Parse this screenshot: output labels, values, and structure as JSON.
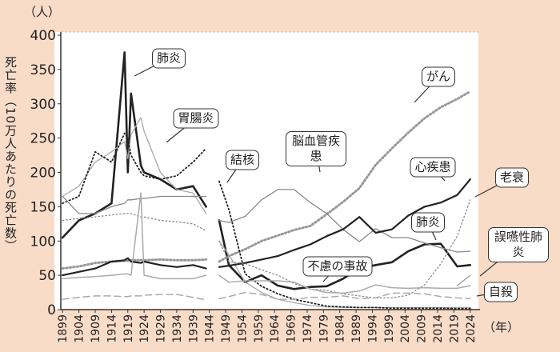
{
  "chart_data": {
    "type": "line",
    "y_unit": "（人）",
    "y_label": "死亡率（10万人あたりの死亡数）",
    "x_unit": "（年）",
    "x": [
      1899,
      1904,
      1909,
      1914,
      1918,
      1919,
      1920,
      1923,
      1924,
      1929,
      1934,
      1939,
      1943,
      1945,
      1947,
      1950,
      1955,
      1960,
      1965,
      1970,
      1975,
      1980,
      1985,
      1990,
      1995,
      2000,
      2005,
      2010,
      2015,
      2020,
      2024
    ],
    "xlim": [
      1896,
      2027
    ],
    "xticks": [
      1899,
      1904,
      1909,
      1914,
      1919,
      1924,
      1929,
      1934,
      1939,
      1944,
      1949,
      1954,
      1959,
      1964,
      1969,
      1974,
      1979,
      1984,
      1989,
      1994,
      1999,
      2004,
      2009,
      2014,
      2019,
      2024
    ],
    "ylim": [
      0,
      400
    ],
    "yticks": [
      0,
      50,
      100,
      150,
      200,
      250,
      300,
      350,
      400
    ],
    "series": [
      {
        "name": "肺炎",
        "color": "#222222",
        "width": 2.6,
        "dash": "solid",
        "values": [
          105,
          130,
          140,
          155,
          375,
          200,
          315,
          210,
          200,
          190,
          175,
          180,
          150,
          null,
          130,
          65,
          40,
          50,
          35,
          30,
          33,
          34,
          45,
          60,
          65,
          69,
          85,
          95,
          96,
          63,
          65
        ]
      },
      {
        "name": "胃腸炎",
        "color": "#aaaaaa",
        "width": 1.3,
        "dash": "solid",
        "values": [
          165,
          180,
          215,
          230,
          245,
          220,
          255,
          280,
          260,
          200,
          175,
          170,
          140,
          null,
          100,
          80,
          40,
          25,
          15,
          10,
          6,
          4,
          3,
          3,
          3,
          3,
          3,
          3,
          3,
          3,
          3
        ]
      },
      {
        "name": "がん",
        "color": "#999999",
        "width": 3,
        "dash": "dot",
        "values": [
          60,
          63,
          68,
          70,
          71,
          71,
          72,
          72,
          72,
          73,
          72,
          72,
          73,
          null,
          70,
          78,
          88,
          100,
          108,
          116,
          122,
          139,
          157,
          177,
          211,
          235,
          258,
          279,
          295,
          307,
          318
        ]
      },
      {
        "name": "結核",
        "color": "#222222",
        "width": 1.8,
        "dash": "dot",
        "values": [
          155,
          165,
          230,
          215,
          257,
          250,
          225,
          200,
          195,
          190,
          195,
          215,
          235,
          null,
          187,
          146,
          52,
          34,
          23,
          15,
          10,
          5,
          4,
          3,
          3,
          2,
          2,
          2,
          2,
          1.5,
          1.5
        ]
      },
      {
        "name": "脳血管疾患",
        "color": "#888888",
        "width": 1.3,
        "dash": "solid",
        "values": [
          165,
          140,
          140,
          150,
          155,
          160,
          160,
          162,
          162,
          165,
          165,
          165,
          165,
          null,
          130,
          127,
          136,
          160,
          175,
          175,
          156,
          140,
          117,
          99,
          118,
          105,
          105,
          97,
          90,
          84,
          85
        ]
      },
      {
        "name": "心疾患",
        "color": "#222222",
        "width": 2.2,
        "dash": "solid",
        "values": [
          50,
          55,
          60,
          70,
          72,
          75,
          70,
          68,
          70,
          65,
          62,
          65,
          60,
          null,
          62,
          64,
          68,
          73,
          78,
          87,
          95,
          107,
          117,
          135,
          112,
          117,
          137,
          150,
          156,
          167,
          190
        ]
      },
      {
        "name": "老衰",
        "color": "#888888",
        "width": 1.3,
        "dash": "dot",
        "values": [
          130,
          133,
          135,
          138,
          140,
          140,
          140,
          135,
          135,
          130,
          128,
          125,
          115,
          null,
          100,
          70,
          67,
          58,
          50,
          38,
          30,
          28,
          23,
          20,
          17,
          17,
          21,
          36,
          67,
          107,
          160
        ]
      },
      {
        "name": "誤嚥性肺炎",
        "color": "#999999",
        "width": 1.3,
        "dash": "solid",
        "values": [
          null,
          null,
          null,
          null,
          null,
          null,
          null,
          null,
          null,
          null,
          null,
          null,
          null,
          null,
          null,
          null,
          null,
          null,
          null,
          null,
          null,
          null,
          null,
          null,
          null,
          null,
          null,
          null,
          null,
          35,
          50
        ]
      },
      {
        "name": "不慮の事故",
        "color": "#aaaaaa",
        "width": 1.5,
        "dash": "solid",
        "values": [
          45,
          47,
          48,
          50,
          52,
          52,
          50,
          170,
          50,
          45,
          45,
          45,
          50,
          null,
          50,
          40,
          42,
          42,
          42,
          40,
          30,
          25,
          24,
          27,
          36,
          32,
          31,
          32,
          31,
          31,
          35
        ]
      },
      {
        "name": "自殺",
        "color": "#aaaaaa",
        "width": 1.5,
        "dash": "dash",
        "values": [
          15,
          18,
          20,
          20,
          19,
          19,
          20,
          20,
          21,
          22,
          22,
          18,
          14,
          null,
          16,
          19,
          25,
          22,
          15,
          15,
          18,
          18,
          20,
          16,
          17,
          24,
          24,
          23,
          19,
          17,
          16
        ]
      }
    ],
    "annotations": [
      "肺炎"
    ]
  }
}
